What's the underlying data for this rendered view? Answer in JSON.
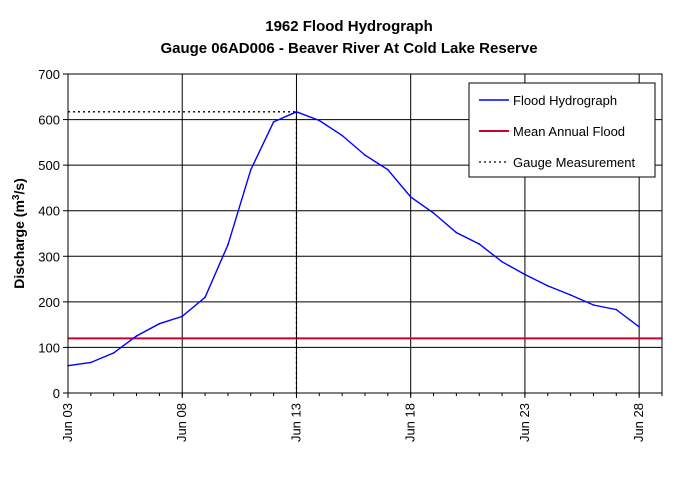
{
  "chart_data": {
    "type": "line",
    "title": "1962 Flood Hydrograph",
    "subtitle": "Gauge 06AD006 - Beaver River At Cold Lake Reserve",
    "ylabel": "Discharge (m³/s)",
    "ylabel_parts": {
      "pre": "Discharge (m",
      "sup": "3",
      "post": "/s)"
    },
    "xlabel": "",
    "ylim": [
      0,
      700
    ],
    "yticks": [
      0,
      100,
      200,
      300,
      400,
      500,
      600,
      700
    ],
    "xlim": [
      "1962-06-03",
      "1962-06-29"
    ],
    "xticks": [
      {
        "date": "1962-06-03",
        "label": "Jun 03"
      },
      {
        "date": "1962-06-08",
        "label": "Jun 08"
      },
      {
        "date": "1962-06-13",
        "label": "Jun 13"
      },
      {
        "date": "1962-06-18",
        "label": "Jun 18"
      },
      {
        "date": "1962-06-23",
        "label": "Jun 23"
      },
      {
        "date": "1962-06-28",
        "label": "Jun 28"
      }
    ],
    "grid": true,
    "legend_position": "top-right",
    "series": [
      {
        "name": "Flood Hydrograph",
        "color": "#0000ff",
        "style": "solid",
        "points": [
          {
            "x": "1962-06-03",
            "y": 60
          },
          {
            "x": "1962-06-04",
            "y": 67
          },
          {
            "x": "1962-06-05",
            "y": 88
          },
          {
            "x": "1962-06-06",
            "y": 125
          },
          {
            "x": "1962-06-07",
            "y": 152
          },
          {
            "x": "1962-06-08",
            "y": 168
          },
          {
            "x": "1962-06-09",
            "y": 210
          },
          {
            "x": "1962-06-10",
            "y": 325
          },
          {
            "x": "1962-06-11",
            "y": 490
          },
          {
            "x": "1962-06-12",
            "y": 595
          },
          {
            "x": "1962-06-13",
            "y": 617
          },
          {
            "x": "1962-06-14",
            "y": 598
          },
          {
            "x": "1962-06-15",
            "y": 565
          },
          {
            "x": "1962-06-16",
            "y": 522
          },
          {
            "x": "1962-06-17",
            "y": 490
          },
          {
            "x": "1962-06-18",
            "y": 430
          },
          {
            "x": "1962-06-19",
            "y": 395
          },
          {
            "x": "1962-06-20",
            "y": 352
          },
          {
            "x": "1962-06-21",
            "y": 327
          },
          {
            "x": "1962-06-22",
            "y": 288
          },
          {
            "x": "1962-06-23",
            "y": 260
          },
          {
            "x": "1962-06-24",
            "y": 235
          },
          {
            "x": "1962-06-25",
            "y": 215
          },
          {
            "x": "1962-06-26",
            "y": 193
          },
          {
            "x": "1962-06-27",
            "y": 183
          },
          {
            "x": "1962-06-28",
            "y": 145
          }
        ]
      },
      {
        "name": "Mean Annual Flood",
        "color": "#cc0033",
        "style": "solid",
        "y": 120
      },
      {
        "name": "Gauge Measurement",
        "color": "#000000",
        "style": "dotted",
        "x": "1962-06-13",
        "y": 617
      }
    ]
  }
}
